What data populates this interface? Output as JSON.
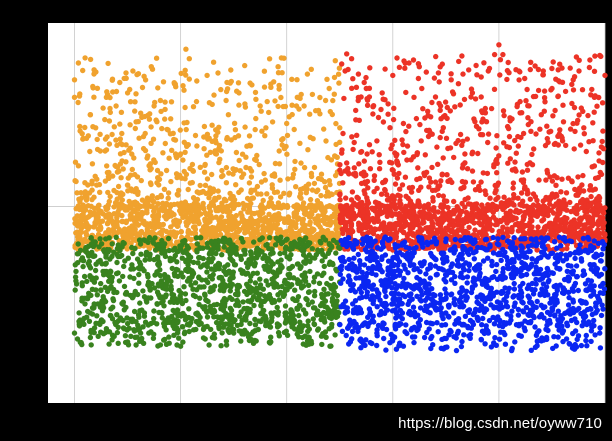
{
  "chart_data": {
    "type": "scatter",
    "title": "",
    "xlabel": "",
    "ylabel": "",
    "grid": true,
    "legend": "none",
    "xlim": [
      -0.05,
      1.0
    ],
    "ylim": [
      -0.45,
      0.42
    ],
    "center_lines": {
      "x": 0.5,
      "y": 0.0
    },
    "series": [
      {
        "color": "#F0A22E",
        "quadrant": "upper-left",
        "x_range": [
          0.0,
          0.5
        ],
        "y_core_range": [
          -0.1,
          0.0
        ],
        "y_spread_max": 0.36,
        "points": [
          [
            0.0,
            0.25
          ],
          [
            0.02,
            0.34
          ],
          [
            0.0,
            0.29
          ],
          [
            0.03,
            0.21
          ],
          [
            0.04,
            0.18
          ],
          [
            0.06,
            0.25
          ],
          [
            0.08,
            0.14
          ],
          [
            0.1,
            0.26
          ],
          [
            0.11,
            0.31
          ],
          [
            0.13,
            0.16
          ],
          [
            0.15,
            0.23
          ],
          [
            0.17,
            0.2
          ],
          [
            0.19,
            0.28
          ],
          [
            0.21,
            0.36
          ],
          [
            0.2,
            0.12
          ],
          [
            0.23,
            0.24
          ],
          [
            0.25,
            0.3
          ],
          [
            0.27,
            0.17
          ],
          [
            0.29,
            0.21
          ],
          [
            0.31,
            0.26
          ],
          [
            0.33,
            0.14
          ],
          [
            0.35,
            0.23
          ],
          [
            0.37,
            0.28
          ],
          [
            0.39,
            0.34
          ],
          [
            0.4,
            0.19
          ],
          [
            0.42,
            0.25
          ],
          [
            0.44,
            0.13
          ],
          [
            0.46,
            0.22
          ],
          [
            0.48,
            0.27
          ],
          [
            0.5,
            0.18
          ]
        ]
      },
      {
        "color": "#EC3326",
        "quadrant": "upper-right",
        "x_range": [
          0.5,
          1.0
        ],
        "y_core_range": [
          -0.1,
          0.0
        ],
        "y_spread_max": 0.37,
        "points": [
          [
            0.51,
            0.31
          ],
          [
            0.53,
            0.22
          ],
          [
            0.55,
            0.27
          ],
          [
            0.57,
            0.15
          ],
          [
            0.58,
            0.26
          ],
          [
            0.6,
            0.3
          ],
          [
            0.62,
            0.19
          ],
          [
            0.64,
            0.25
          ],
          [
            0.65,
            0.32
          ],
          [
            0.67,
            0.17
          ],
          [
            0.69,
            0.23
          ],
          [
            0.71,
            0.29
          ],
          [
            0.73,
            0.14
          ],
          [
            0.75,
            0.26
          ],
          [
            0.77,
            0.2
          ],
          [
            0.78,
            0.31
          ],
          [
            0.8,
            0.37
          ],
          [
            0.82,
            0.16
          ],
          [
            0.84,
            0.24
          ],
          [
            0.86,
            0.33
          ],
          [
            0.88,
            0.21
          ],
          [
            0.9,
            0.27
          ],
          [
            0.92,
            0.15
          ],
          [
            0.94,
            0.29
          ],
          [
            0.96,
            0.18
          ],
          [
            0.98,
            0.25
          ],
          [
            1.0,
            0.3
          ]
        ]
      },
      {
        "color": "#39821E",
        "quadrant": "lower-left",
        "x_range": [
          0.0,
          0.5
        ],
        "y_core_range": [
          -0.27,
          -0.07
        ],
        "y_spread_min": -0.32,
        "points": [
          [
            0.0,
            -0.29
          ],
          [
            0.03,
            -0.3
          ],
          [
            0.06,
            -0.28
          ],
          [
            0.1,
            -0.31
          ],
          [
            0.14,
            -0.29
          ],
          [
            0.2,
            -0.32
          ],
          [
            0.26,
            -0.3
          ],
          [
            0.3,
            -0.29
          ],
          [
            0.37,
            -0.31
          ],
          [
            0.43,
            -0.3
          ],
          [
            0.48,
            -0.28
          ]
        ]
      },
      {
        "color": "#0A26F2",
        "quadrant": "lower-right",
        "x_range": [
          0.5,
          1.0
        ],
        "y_core_range": [
          -0.27,
          -0.07
        ],
        "y_spread_min": -0.33,
        "points": [
          [
            0.52,
            -0.31
          ],
          [
            0.57,
            -0.29
          ],
          [
            0.62,
            -0.32
          ],
          [
            0.66,
            -0.3
          ],
          [
            0.72,
            -0.33
          ],
          [
            0.78,
            -0.29
          ],
          [
            0.83,
            -0.31
          ],
          [
            0.89,
            -0.3
          ],
          [
            0.94,
            -0.32
          ],
          [
            0.99,
            -0.29
          ]
        ]
      }
    ]
  },
  "footer": {
    "watermark": "https://blog.csdn.net/oyww710"
  }
}
